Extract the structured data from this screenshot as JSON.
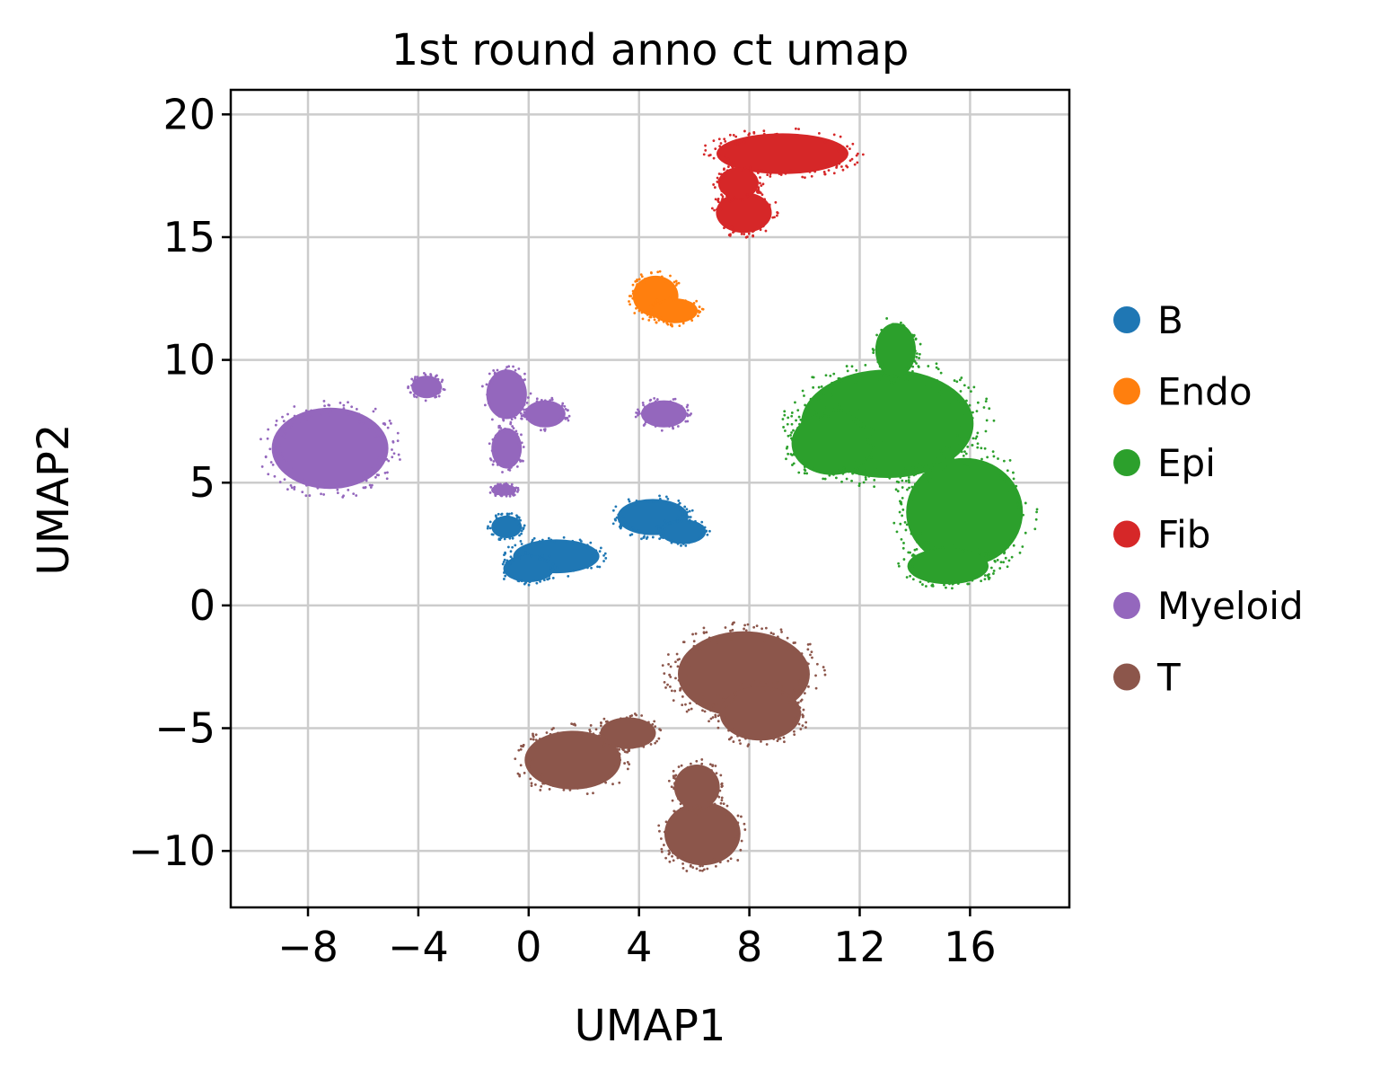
{
  "chart_data": {
    "type": "scatter",
    "title": "1st round anno ct umap",
    "xlabel": "UMAP1",
    "ylabel": "UMAP2",
    "xlim": [
      -10.8,
      19.6
    ],
    "ylim": [
      -12.3,
      21.0
    ],
    "xticks": [
      -8,
      -4,
      0,
      4,
      8,
      12,
      16
    ],
    "xtick_labels": [
      "−8",
      "−4",
      "0",
      "4",
      "8",
      "12",
      "16"
    ],
    "yticks": [
      -10,
      -5,
      0,
      5,
      10,
      15,
      20
    ],
    "ytick_labels": [
      "−10",
      "−5",
      "0",
      "5",
      "10",
      "15",
      "20"
    ],
    "grid": true,
    "legend_position": "right",
    "series": [
      {
        "name": "B",
        "color": "#1f77b4",
        "clusters": [
          {
            "cx": 1.0,
            "cy": 2.0,
            "rx": 1.7,
            "ry": 0.75
          },
          {
            "cx": 0.0,
            "cy": 1.5,
            "rx": 1.0,
            "ry": 0.6
          },
          {
            "cx": 4.5,
            "cy": 3.6,
            "rx": 1.4,
            "ry": 0.8
          },
          {
            "cx": 5.6,
            "cy": 3.0,
            "rx": 0.9,
            "ry": 0.55
          },
          {
            "cx": -0.8,
            "cy": 3.2,
            "rx": 0.6,
            "ry": 0.5
          }
        ]
      },
      {
        "name": "Endo",
        "color": "#ff7f0e",
        "clusters": [
          {
            "cx": 4.6,
            "cy": 12.6,
            "rx": 0.9,
            "ry": 0.9
          },
          {
            "cx": 5.3,
            "cy": 12.0,
            "rx": 0.9,
            "ry": 0.55
          }
        ]
      },
      {
        "name": "Epi",
        "color": "#2ca02c",
        "clusters": [
          {
            "cx": 13.0,
            "cy": 7.4,
            "rx": 3.4,
            "ry": 2.4
          },
          {
            "cx": 15.8,
            "cy": 3.8,
            "rx": 2.3,
            "ry": 2.4
          },
          {
            "cx": 13.3,
            "cy": 10.4,
            "rx": 0.8,
            "ry": 1.2
          },
          {
            "cx": 15.2,
            "cy": 1.6,
            "rx": 1.6,
            "ry": 0.8
          },
          {
            "cx": 11.0,
            "cy": 6.6,
            "rx": 1.6,
            "ry": 1.4
          }
        ]
      },
      {
        "name": "Fib",
        "color": "#d62728",
        "clusters": [
          {
            "cx": 9.2,
            "cy": 18.4,
            "rx": 2.6,
            "ry": 0.9
          },
          {
            "cx": 7.8,
            "cy": 16.0,
            "rx": 1.1,
            "ry": 0.9
          },
          {
            "cx": 7.6,
            "cy": 17.2,
            "rx": 0.8,
            "ry": 0.7
          }
        ]
      },
      {
        "name": "Myeloid",
        "color": "#9467bd",
        "clusters": [
          {
            "cx": -7.2,
            "cy": 6.4,
            "rx": 2.3,
            "ry": 1.8
          },
          {
            "cx": -3.7,
            "cy": 8.9,
            "rx": 0.6,
            "ry": 0.5
          },
          {
            "cx": -0.8,
            "cy": 8.6,
            "rx": 0.8,
            "ry": 1.1
          },
          {
            "cx": 0.6,
            "cy": 7.8,
            "rx": 0.8,
            "ry": 0.6
          },
          {
            "cx": -0.8,
            "cy": 6.4,
            "rx": 0.6,
            "ry": 0.9
          },
          {
            "cx": 4.9,
            "cy": 7.8,
            "rx": 0.9,
            "ry": 0.6
          },
          {
            "cx": -0.9,
            "cy": 4.7,
            "rx": 0.5,
            "ry": 0.25
          }
        ]
      },
      {
        "name": "T",
        "color": "#8c564b",
        "clusters": [
          {
            "cx": 7.8,
            "cy": -2.8,
            "rx": 2.6,
            "ry": 1.9
          },
          {
            "cx": 8.4,
            "cy": -4.4,
            "rx": 1.6,
            "ry": 1.2
          },
          {
            "cx": 1.6,
            "cy": -6.3,
            "rx": 1.9,
            "ry": 1.3
          },
          {
            "cx": 6.3,
            "cy": -9.3,
            "rx": 1.5,
            "ry": 1.4
          },
          {
            "cx": 6.1,
            "cy": -7.4,
            "rx": 0.9,
            "ry": 1.0
          },
          {
            "cx": 3.6,
            "cy": -5.2,
            "rx": 1.1,
            "ry": 0.7
          }
        ]
      }
    ]
  }
}
